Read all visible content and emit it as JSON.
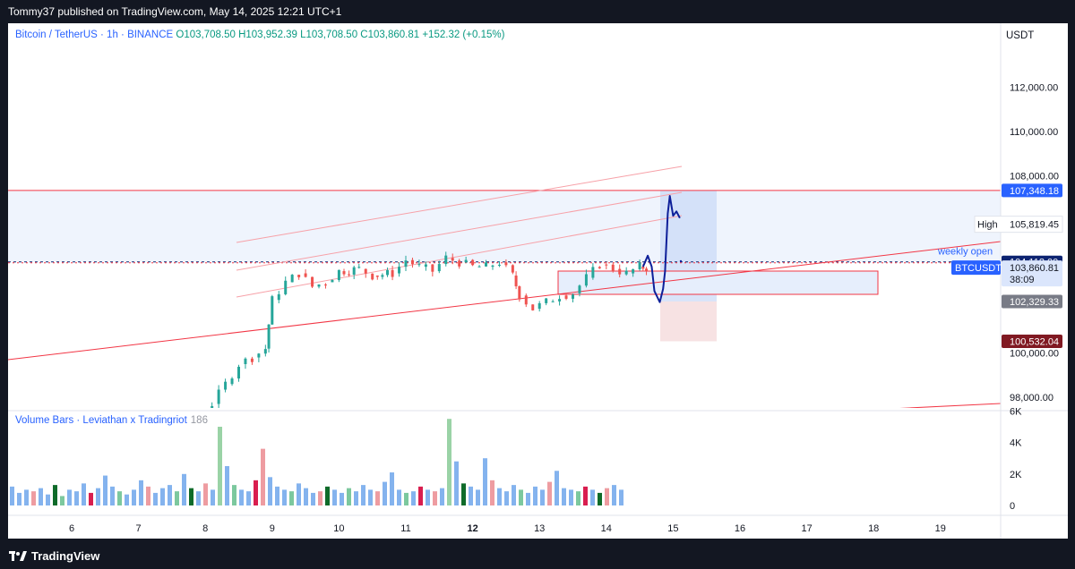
{
  "header": {
    "publisher_text": "Tommy37 published on TradingView.com, May 14, 2025 12:21 UTC+1"
  },
  "legend": {
    "symbol": "Bitcoin / TetherUS · 1h · BINANCE",
    "ohlc": "O103,708.50  H103,952.39  L103,708.50  C103,860.81  +152.32 (+0.15%)"
  },
  "price_scale": {
    "currency": "USDT",
    "ticks": [
      "112,000.00",
      "110,000.00",
      "108,000.00",
      "100,000.00",
      "98,000.00"
    ],
    "labels": {
      "upper_level": "107,348.18",
      "high_label": "High",
      "high_value": "105,819.45",
      "weekly_open_label": "weekly open",
      "weekly_open_value": "104,118.00",
      "symbol_tag": "BTCUSDT",
      "last_price": "103,860.81",
      "countdown": "38:09",
      "target_value": "102,329.33",
      "stop_value": "100,532.04"
    }
  },
  "volume": {
    "title": "Volume Bars · Leviathan x Tradingriot",
    "value": "186",
    "ticks": [
      "6K",
      "4K",
      "2K",
      "0"
    ]
  },
  "time_axis": {
    "labels": [
      "6",
      "7",
      "8",
      "9",
      "10",
      "11",
      "12",
      "13",
      "14",
      "15",
      "16",
      "17",
      "18",
      "19"
    ],
    "bold_label": "12"
  },
  "footer": {
    "brand": "TradingView"
  },
  "colors": {
    "up": "#26a69a",
    "down": "#ef5350",
    "levels": "#f23645",
    "projection": "#0d1f99",
    "weekly_open": "#0d2471",
    "target_tag": "#787b86",
    "stop_tag": "#801922",
    "accent": "#2962ff"
  },
  "chart_data": {
    "type": "candlestick",
    "symbol": "BTCUSDT",
    "timeframe": "1h",
    "y_range": [
      96500,
      113500
    ],
    "x_range_days": [
      5.3,
      19.9
    ],
    "price_levels": [
      {
        "label": "",
        "value": 107348.18
      },
      {
        "label": "High",
        "value": 105819.45
      },
      {
        "label": "weekly open",
        "value": 104118.0
      },
      {
        "label": "BTCUSDT",
        "value": 103860.81
      },
      {
        "label": "",
        "value": 102329.33
      },
      {
        "label": "",
        "value": 100532.04
      }
    ],
    "price_path": [
      [
        6.1,
        96100
      ],
      [
        6.6,
        96300
      ],
      [
        7.0,
        97000
      ],
      [
        7.3,
        97200
      ],
      [
        7.6,
        97300
      ],
      [
        7.9,
        97000
      ],
      [
        8.1,
        97700
      ],
      [
        8.3,
        98600
      ],
      [
        8.5,
        99500
      ],
      [
        8.7,
        99800
      ],
      [
        8.9,
        100200
      ],
      [
        9.0,
        102400
      ],
      [
        9.2,
        103200
      ],
      [
        9.4,
        103600
      ],
      [
        9.6,
        103000
      ],
      [
        9.8,
        103200
      ],
      [
        10.0,
        103700
      ],
      [
        10.3,
        103800
      ],
      [
        10.5,
        103500
      ],
      [
        10.8,
        103600
      ],
      [
        11.0,
        104200
      ],
      [
        11.2,
        103900
      ],
      [
        11.4,
        103700
      ],
      [
        11.6,
        104300
      ],
      [
        11.8,
        104100
      ],
      [
        12.0,
        103900
      ],
      [
        12.2,
        103900
      ],
      [
        12.4,
        104100
      ],
      [
        12.6,
        103500
      ],
      [
        12.7,
        102600
      ],
      [
        12.9,
        102000
      ],
      [
        13.1,
        102300
      ],
      [
        13.3,
        102600
      ],
      [
        13.5,
        102700
      ],
      [
        13.7,
        103400
      ],
      [
        13.9,
        104000
      ],
      [
        14.1,
        103800
      ],
      [
        14.3,
        103600
      ],
      [
        14.5,
        103900
      ],
      [
        14.6,
        103860.81
      ]
    ],
    "projection_path": [
      [
        14.55,
        103900
      ],
      [
        14.62,
        104400
      ],
      [
        14.68,
        103900
      ],
      [
        14.72,
        102800
      ],
      [
        14.8,
        102300
      ],
      [
        14.85,
        102900
      ],
      [
        14.88,
        103700
      ],
      [
        14.92,
        106300
      ],
      [
        14.95,
        107100
      ],
      [
        15.0,
        106200
      ],
      [
        15.05,
        106400
      ],
      [
        15.1,
        106100
      ]
    ],
    "volume_bars_k": [
      1.2,
      0.8,
      1.0,
      0.9,
      1.1,
      0.7,
      1.3,
      0.6,
      1.0,
      0.9,
      1.4,
      0.8,
      1.1,
      1.9,
      1.2,
      0.9,
      0.7,
      1.0,
      1.6,
      1.2,
      0.8,
      1.1,
      1.3,
      0.9,
      2.0,
      1.1,
      0.9,
      1.4,
      1.0,
      5.0,
      2.5,
      1.3,
      1.0,
      0.9,
      1.6,
      3.6,
      1.8,
      1.2,
      1.0,
      0.9,
      1.4,
      1.1,
      0.8,
      0.9,
      1.2,
      1.0,
      0.8,
      1.1,
      0.9,
      1.3,
      1.0,
      0.9,
      1.5,
      2.1,
      1.0,
      0.8,
      0.9,
      1.2,
      1.0,
      0.9,
      1.1,
      5.5,
      2.8,
      1.4,
      1.2,
      1.0,
      3.0,
      1.6,
      1.1,
      0.9,
      1.3,
      1.0,
      0.8,
      1.2,
      1.0,
      1.5,
      2.2,
      1.1,
      1.0,
      0.9,
      1.2,
      1.0,
      0.8,
      1.1,
      1.3,
      1.0
    ],
    "volume_range_k": [
      0,
      6
    ]
  }
}
